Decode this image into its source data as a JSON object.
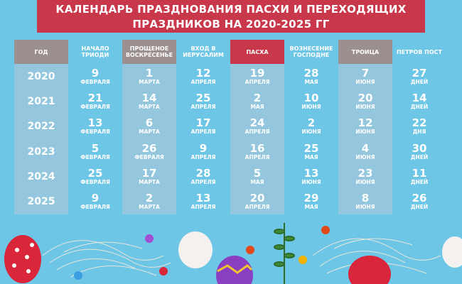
{
  "title": "КАЛЕНДАРЬ ПРАЗДНОВАНИЯ ПАСХИ И ПЕРЕХОДЯЩИХ ПРАЗДНИКОВ НА 2020-2025 ГГ",
  "columns": [
    {
      "header": "ГОД"
    },
    {
      "header": "НАЧАЛО ТРИОДИ"
    },
    {
      "header": "ПРОЩЕНОЕ ВОСКРЕСЕНЬЕ"
    },
    {
      "header": "ВХОД В ИЕРУСАЛИМ"
    },
    {
      "header": "ПАСХА"
    },
    {
      "header": "ВОЗНЕСЕНИЕ ГОСПОДНЕ"
    },
    {
      "header": "ТРОИЦА"
    },
    {
      "header": "ПЕТРОВ ПОСТ"
    }
  ],
  "rows": [
    {
      "year": "2020",
      "cells": [
        {
          "n": "9",
          "u": "ФЕВРАЛЯ"
        },
        {
          "n": "1",
          "u": "МАРТА"
        },
        {
          "n": "12",
          "u": "АПРЕЛЯ"
        },
        {
          "n": "19",
          "u": "АПРЕЛЯ"
        },
        {
          "n": "28",
          "u": "МАЯ"
        },
        {
          "n": "7",
          "u": "ИЮНЯ"
        },
        {
          "n": "27",
          "u": "ДНЕЙ"
        }
      ]
    },
    {
      "year": "2021",
      "cells": [
        {
          "n": "21",
          "u": "ФЕВРАЛЯ"
        },
        {
          "n": "14",
          "u": "МАРТА"
        },
        {
          "n": "25",
          "u": "АПРЕЛЯ"
        },
        {
          "n": "2",
          "u": "МАЯ"
        },
        {
          "n": "10",
          "u": "ИЮНЯ"
        },
        {
          "n": "20",
          "u": "ИЮНЯ"
        },
        {
          "n": "14",
          "u": "ДНЕЙ"
        }
      ]
    },
    {
      "year": "2022",
      "cells": [
        {
          "n": "13",
          "u": "ФЕВРАЛЯ"
        },
        {
          "n": "6",
          "u": "МАРТА"
        },
        {
          "n": "17",
          "u": "АПРЕЛЯ"
        },
        {
          "n": "24",
          "u": "АПРЕЛЯ"
        },
        {
          "n": "2",
          "u": "ИЮНЯ"
        },
        {
          "n": "12",
          "u": "ИЮНЯ"
        },
        {
          "n": "22",
          "u": "ДНЯ"
        }
      ]
    },
    {
      "year": "2023",
      "cells": [
        {
          "n": "5",
          "u": "ФЕВРАЛЯ"
        },
        {
          "n": "26",
          "u": "ФЕВРАЛЯ"
        },
        {
          "n": "9",
          "u": "АПРЕЛЯ"
        },
        {
          "n": "16",
          "u": "АПРЕЛЯ"
        },
        {
          "n": "25",
          "u": "МАЯ"
        },
        {
          "n": "4",
          "u": "ИЮНЯ"
        },
        {
          "n": "30",
          "u": "ДНЕЙ"
        }
      ]
    },
    {
      "year": "2024",
      "cells": [
        {
          "n": "25",
          "u": "ФЕВРАЛЯ"
        },
        {
          "n": "17",
          "u": "МАРТА"
        },
        {
          "n": "28",
          "u": "АПРЕЛЯ"
        },
        {
          "n": "5",
          "u": "МАЯ"
        },
        {
          "n": "13",
          "u": "ИЮНЯ"
        },
        {
          "n": "23",
          "u": "ИЮНЯ"
        },
        {
          "n": "11",
          "u": "ДНЕЙ"
        }
      ]
    },
    {
      "year": "2025",
      "cells": [
        {
          "n": "9",
          "u": "ФЕВРАЛЯ"
        },
        {
          "n": "2",
          "u": "МАРТА"
        },
        {
          "n": "13",
          "u": "АПРЕЛЯ"
        },
        {
          "n": "20",
          "u": "АПРЕЛЯ"
        },
        {
          "n": "29",
          "u": "МАЯ"
        },
        {
          "n": "8",
          "u": "ИЮНЯ"
        },
        {
          "n": "26",
          "u": "ДНЕЙ"
        }
      ]
    }
  ],
  "colors": {
    "banner": "#c9384a",
    "highlight_header": "#c9384a",
    "gray_header": "#9c8f8f",
    "background": "#6ec6e6"
  }
}
